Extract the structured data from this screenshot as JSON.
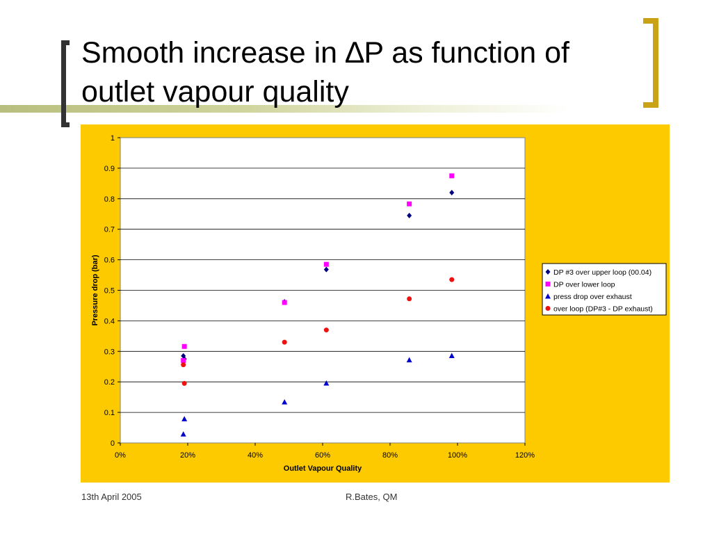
{
  "slide": {
    "title": "Smooth increase in ∆P as function of outlet vapour quality",
    "footer_date": "13th April 2005",
    "footer_author": "R.Bates, QM"
  },
  "colors": {
    "panel_background": "#fdca00",
    "title_bracket_left": "#333333",
    "title_bracket_right": "#c9a216"
  },
  "chart_data": {
    "type": "scatter",
    "xlabel": "Outlet Vapour Quality",
    "ylabel": "Pressure drop (bar)",
    "xlim": [
      0,
      1.2
    ],
    "ylim": [
      0,
      1
    ],
    "x_ticks": [
      "0%",
      "20%",
      "40%",
      "60%",
      "80%",
      "100%",
      "120%"
    ],
    "y_ticks": [
      "0",
      "0.1",
      "0.2",
      "0.3",
      "0.4",
      "0.5",
      "0.6",
      "0.7",
      "0.8",
      "0.9",
      "1"
    ],
    "grid": "horizontal",
    "legend_position": "right",
    "series": [
      {
        "name": "DP #3 over upper loop (00.04)",
        "marker": "diamond",
        "color": "#000080",
        "points": [
          [
            0.187,
            0.285
          ],
          [
            0.19,
            0.275
          ],
          [
            0.487,
            0.462
          ],
          [
            0.611,
            0.568
          ],
          [
            0.857,
            0.745
          ],
          [
            0.983,
            0.82
          ]
        ]
      },
      {
        "name": "DP over lower loop",
        "marker": "square",
        "color": "#ff00ff",
        "points": [
          [
            0.187,
            0.27
          ],
          [
            0.19,
            0.316
          ],
          [
            0.487,
            0.46
          ],
          [
            0.611,
            0.585
          ],
          [
            0.857,
            0.783
          ],
          [
            0.983,
            0.875
          ]
        ]
      },
      {
        "name": "press drop over exhaust",
        "marker": "triangle",
        "color": "#0000cc",
        "points": [
          [
            0.187,
            0.029
          ],
          [
            0.19,
            0.079
          ],
          [
            0.487,
            0.134
          ],
          [
            0.611,
            0.196
          ],
          [
            0.857,
            0.272
          ],
          [
            0.983,
            0.286
          ]
        ]
      },
      {
        "name": "over loop (DP#3 - DP exhaust)",
        "marker": "circle",
        "color": "#ee1111",
        "points": [
          [
            0.187,
            0.256
          ],
          [
            0.19,
            0.195
          ],
          [
            0.487,
            0.33
          ],
          [
            0.611,
            0.37
          ],
          [
            0.857,
            0.472
          ],
          [
            0.983,
            0.535
          ]
        ]
      }
    ]
  }
}
